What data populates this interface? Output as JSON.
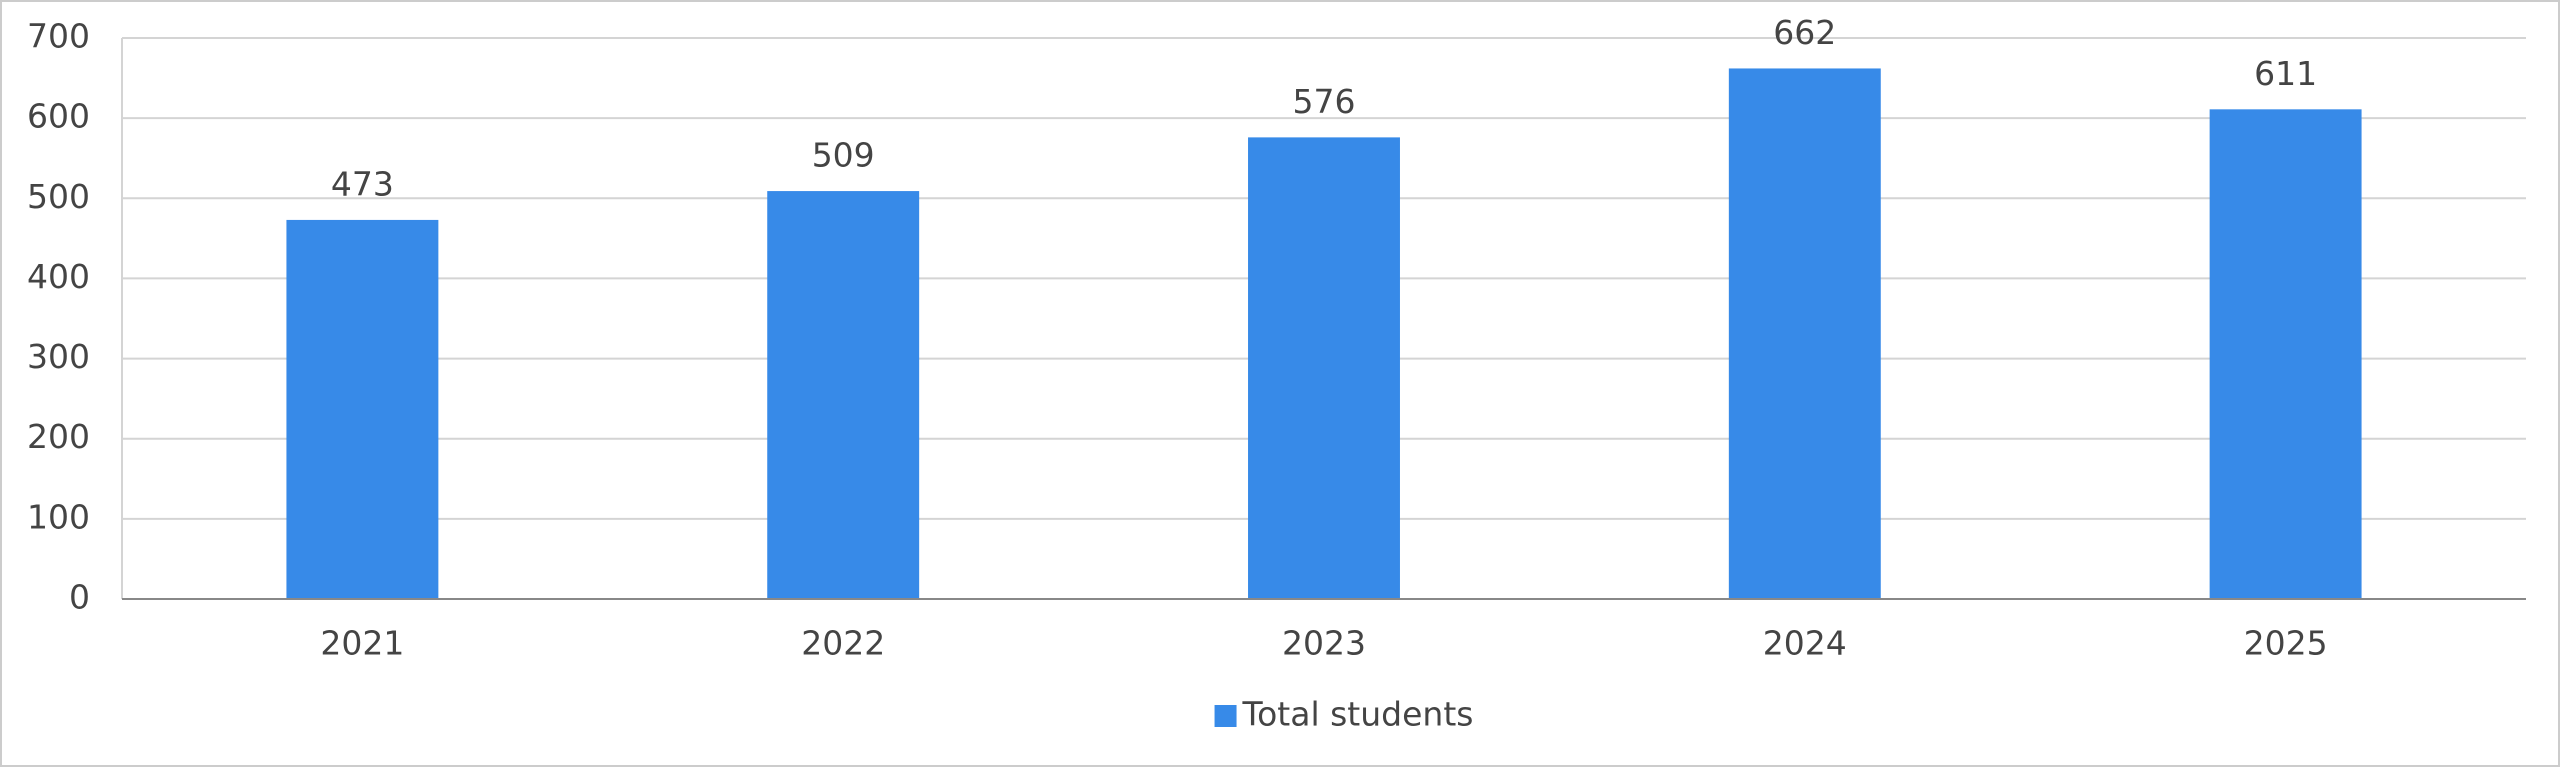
{
  "chart_data": {
    "type": "bar",
    "categories": [
      "2021",
      "2022",
      "2023",
      "2024",
      "2025"
    ],
    "series": [
      {
        "name": "Total students",
        "color": "#378ae8",
        "values": [
          473,
          509,
          576,
          662,
          611
        ]
      }
    ],
    "ylim": [
      0,
      700
    ],
    "yticks": [
      0,
      100,
      200,
      300,
      400,
      500,
      600,
      700
    ],
    "grid": true,
    "legend": "bottom"
  }
}
